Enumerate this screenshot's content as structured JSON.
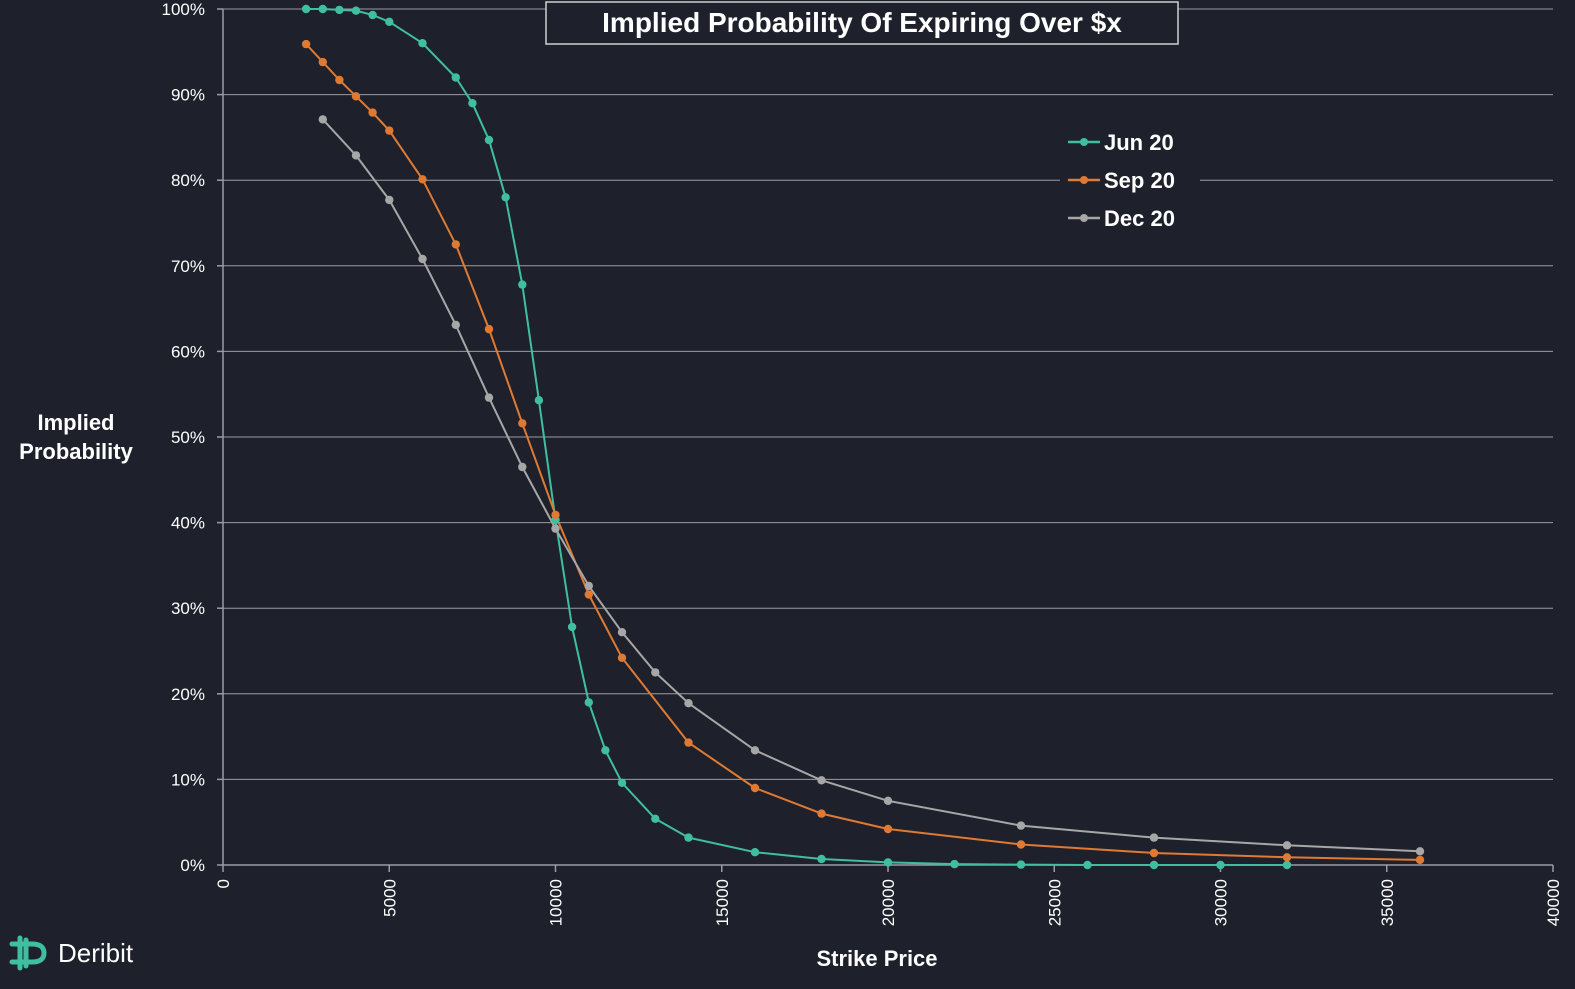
{
  "colors": {
    "background": "#1e212b",
    "grid": "#9a9ca3",
    "jun": "#3fbfa0",
    "sep": "#e07a32",
    "dec": "#a7a7a7",
    "brand": "#3fbfa0"
  },
  "brand": {
    "name": "Deribit",
    "icon": "deribit-logo-icon"
  },
  "chart_data": {
    "type": "line",
    "title": "Implied Probability Of Expiring Over $x",
    "xlabel": "Strike Price",
    "ylabel_line1": "Implied",
    "ylabel_line2": "Probability",
    "xlim": [
      0,
      40000
    ],
    "ylim": [
      0,
      100
    ],
    "x_ticks": [
      "0",
      "5000",
      "10000",
      "15000",
      "20000",
      "25000",
      "30000",
      "35000",
      "40000"
    ],
    "y_ticks": [
      "0%",
      "10%",
      "20%",
      "30%",
      "40%",
      "50%",
      "60%",
      "70%",
      "80%",
      "90%",
      "100%"
    ],
    "grid": true,
    "legend_position": "top-right",
    "series": [
      {
        "name": "Jun 20",
        "color_key": "jun",
        "points": [
          [
            2500,
            100
          ],
          [
            3000,
            100
          ],
          [
            3500,
            99.9
          ],
          [
            4000,
            99.8
          ],
          [
            4500,
            99.3
          ],
          [
            5000,
            98.5
          ],
          [
            6000,
            96
          ],
          [
            7000,
            92
          ],
          [
            7500,
            89
          ],
          [
            8000,
            84.7
          ],
          [
            8500,
            78
          ],
          [
            9000,
            67.8
          ],
          [
            9500,
            54.3
          ],
          [
            10000,
            40.3
          ],
          [
            10500,
            27.8
          ],
          [
            11000,
            19
          ],
          [
            11500,
            13.4
          ],
          [
            12000,
            9.6
          ],
          [
            13000,
            5.4
          ],
          [
            14000,
            3.2
          ],
          [
            16000,
            1.5
          ],
          [
            18000,
            0.7
          ],
          [
            20000,
            0.3
          ],
          [
            22000,
            0.1
          ],
          [
            24000,
            0.05
          ],
          [
            26000,
            0
          ],
          [
            28000,
            0
          ],
          [
            30000,
            0
          ],
          [
            32000,
            0
          ]
        ]
      },
      {
        "name": "Sep 20",
        "color_key": "sep",
        "points": [
          [
            2500,
            95.9
          ],
          [
            3000,
            93.8
          ],
          [
            3500,
            91.7
          ],
          [
            4000,
            89.8
          ],
          [
            4500,
            87.9
          ],
          [
            5000,
            85.8
          ],
          [
            6000,
            80.1
          ],
          [
            7000,
            72.5
          ],
          [
            8000,
            62.6
          ],
          [
            9000,
            51.6
          ],
          [
            10000,
            40.9
          ],
          [
            11000,
            31.6
          ],
          [
            12000,
            24.2
          ],
          [
            14000,
            14.3
          ],
          [
            16000,
            9
          ],
          [
            18000,
            6
          ],
          [
            20000,
            4.2
          ],
          [
            24000,
            2.4
          ],
          [
            28000,
            1.4
          ],
          [
            32000,
            0.9
          ],
          [
            36000,
            0.6
          ]
        ]
      },
      {
        "name": "Dec 20",
        "color_key": "dec",
        "points": [
          [
            3000,
            87.1
          ],
          [
            4000,
            82.9
          ],
          [
            5000,
            77.7
          ],
          [
            6000,
            70.8
          ],
          [
            7000,
            63.1
          ],
          [
            8000,
            54.6
          ],
          [
            9000,
            46.5
          ],
          [
            10000,
            39.3
          ],
          [
            11000,
            32.6
          ],
          [
            12000,
            27.2
          ],
          [
            13000,
            22.5
          ],
          [
            14000,
            18.9
          ],
          [
            16000,
            13.4
          ],
          [
            18000,
            9.9
          ],
          [
            20000,
            7.5
          ],
          [
            24000,
            4.6
          ],
          [
            28000,
            3.2
          ],
          [
            32000,
            2.3
          ],
          [
            36000,
            1.6
          ]
        ]
      }
    ]
  }
}
